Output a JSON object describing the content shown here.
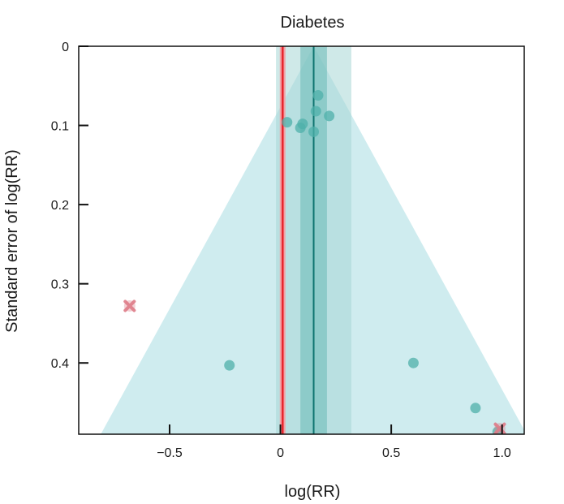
{
  "chart_data": {
    "type": "scatter",
    "title": "Diabetes",
    "xlabel": "log(RR)",
    "ylabel": "Standard error of log(RR)",
    "xlim": [
      -0.91,
      1.1
    ],
    "ylim": [
      0,
      0.49
    ],
    "y_inverted": true,
    "x_ticks": [
      -0.5,
      0,
      0.5,
      1.0
    ],
    "x_tick_labels": [
      "−0.5",
      "0",
      "0.5",
      "1.0"
    ],
    "y_ticks": [
      0,
      0.1,
      0.2,
      0.3,
      0.4
    ],
    "y_tick_labels": [
      "0",
      "0.1",
      "0.2",
      "0.3",
      "0.4"
    ],
    "pooled_estimate": 0.15,
    "pooled_ci": [
      0.09,
      0.21
    ],
    "prediction_interval": [
      -0.02,
      0.32
    ],
    "null_line": 0.01,
    "funnel_center": 0.15,
    "funnel_z": 1.96,
    "points": [
      {
        "x": 0.03,
        "y": 0.096
      },
      {
        "x": 0.09,
        "y": 0.103
      },
      {
        "x": 0.1,
        "y": 0.098
      },
      {
        "x": 0.15,
        "y": 0.108
      },
      {
        "x": 0.16,
        "y": 0.082
      },
      {
        "x": 0.17,
        "y": 0.062
      },
      {
        "x": 0.22,
        "y": 0.088
      },
      {
        "x": -0.23,
        "y": 0.403
      },
      {
        "x": 0.6,
        "y": 0.4
      },
      {
        "x": 0.88,
        "y": 0.457
      },
      {
        "x": 0.98,
        "y": 0.487
      }
    ],
    "imputed_points": [
      {
        "x": -0.68,
        "y": 0.328
      },
      {
        "x": 0.99,
        "y": 0.483
      }
    ],
    "colors": {
      "funnel": "#cfecef",
      "prediction_band": "#a8d7d6",
      "ci_band": "#6fbdb9",
      "pooled_line": "#0e7470",
      "null_line": "#e8242c",
      "point": "#4fb0aa",
      "imputed_point": "#de7b87"
    }
  }
}
